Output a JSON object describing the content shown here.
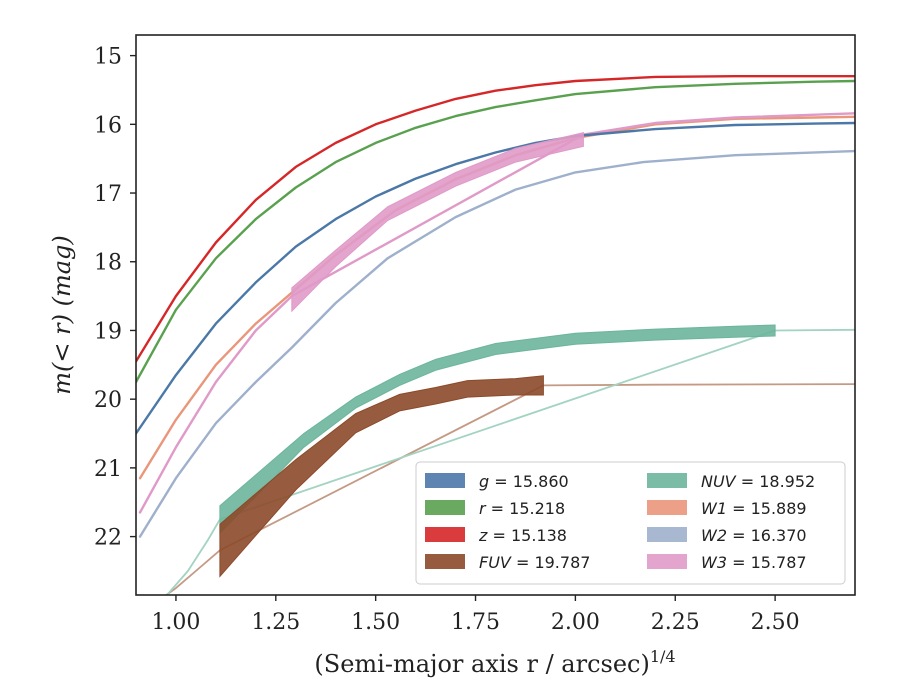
{
  "chart_data": {
    "type": "line",
    "xlabel": "(Semi-major axis r / arcsec)",
    "xlabel_exponent": "1/4",
    "ylabel": "m(< r) (mag)",
    "xlim": [
      0.9,
      2.7
    ],
    "ylim": [
      22.85,
      14.7
    ],
    "y_inverted": true,
    "grid": false,
    "legend_position": "lower-right",
    "xticks": [
      "1.00",
      "1.25",
      "1.50",
      "1.75",
      "2.00",
      "2.25",
      "2.50"
    ],
    "yticks": [
      "15",
      "16",
      "17",
      "18",
      "19",
      "20",
      "21",
      "22"
    ],
    "series": [
      {
        "name": "g",
        "label_value": "15.860",
        "color": "#4c78a8",
        "style": "thin",
        "x": [
          0.9,
          1.0,
          1.1,
          1.2,
          1.3,
          1.4,
          1.5,
          1.6,
          1.7,
          1.8,
          1.9,
          2.0,
          2.2,
          2.4,
          2.6,
          2.7
        ],
        "y": [
          20.5,
          19.65,
          18.9,
          18.3,
          17.78,
          17.38,
          17.05,
          16.79,
          16.58,
          16.41,
          16.27,
          16.17,
          16.07,
          16.01,
          15.99,
          15.98
        ]
      },
      {
        "name": "r",
        "label_value": "15.218",
        "color": "#59a14f",
        "style": "thin",
        "x": [
          0.9,
          1.0,
          1.1,
          1.2,
          1.3,
          1.4,
          1.5,
          1.6,
          1.7,
          1.8,
          1.9,
          2.0,
          2.2,
          2.4,
          2.6,
          2.7
        ],
        "y": [
          19.75,
          18.7,
          17.95,
          17.38,
          16.92,
          16.55,
          16.27,
          16.05,
          15.88,
          15.75,
          15.65,
          15.56,
          15.46,
          15.41,
          15.38,
          15.37
        ]
      },
      {
        "name": "z",
        "label_value": "15.138",
        "color": "#d62728",
        "style": "thin",
        "x": [
          0.9,
          1.0,
          1.1,
          1.2,
          1.3,
          1.4,
          1.5,
          1.6,
          1.7,
          1.8,
          1.9,
          2.0,
          2.2,
          2.4,
          2.6,
          2.7
        ],
        "y": [
          19.45,
          18.5,
          17.72,
          17.1,
          16.62,
          16.27,
          16.0,
          15.8,
          15.63,
          15.51,
          15.43,
          15.37,
          15.31,
          15.3,
          15.3,
          15.3
        ]
      },
      {
        "name": "FUV",
        "label_value": "19.787",
        "color": "#8c4a2a",
        "style": "band",
        "x": [
          1.11,
          1.3,
          1.45,
          1.56,
          1.65,
          1.73,
          1.85,
          1.92
        ],
        "y": [
          22.2,
          21.1,
          20.35,
          20.05,
          19.95,
          19.85,
          19.82,
          19.8
        ],
        "band_halfwidth": [
          0.38,
          0.22,
          0.14,
          0.12,
          0.12,
          0.12,
          0.12,
          0.14
        ]
      },
      {
        "name": "FUV-extension",
        "legend": false,
        "color": "#c49a85",
        "style": "thin",
        "x": [
          0.94,
          1.0,
          1.06,
          1.11,
          1.92,
          2.2,
          2.7
        ],
        "y": [
          23.0,
          22.75,
          22.45,
          22.2,
          19.8,
          19.79,
          19.78
        ]
      },
      {
        "name": "NUV",
        "label_value": "18.952",
        "color": "#6cb59b",
        "style": "band",
        "x": [
          1.11,
          1.32,
          1.45,
          1.56,
          1.65,
          1.8,
          2.0,
          2.2,
          2.4,
          2.5
        ],
        "y": [
          21.75,
          20.6,
          20.05,
          19.72,
          19.5,
          19.27,
          19.12,
          19.06,
          19.02,
          19.0
        ],
        "band_halfwidth": [
          0.2,
          0.1,
          0.08,
          0.08,
          0.08,
          0.08,
          0.08,
          0.08,
          0.08,
          0.08
        ]
      },
      {
        "name": "NUV-extension",
        "legend": false,
        "color": "#a3d3c1",
        "style": "thin",
        "x": [
          0.97,
          1.03,
          1.08,
          1.11,
          2.5,
          2.7
        ],
        "y": [
          22.9,
          22.5,
          22.05,
          21.75,
          19.0,
          18.99
        ]
      },
      {
        "name": "W1",
        "label_value": "15.889",
        "color": "#e9967a",
        "style": "thin",
        "x": [
          0.91,
          1.0,
          1.1,
          1.2,
          1.29,
          1.4,
          1.55,
          1.7,
          1.85,
          2.0,
          2.2,
          2.4,
          2.6,
          2.7
        ],
        "y": [
          21.15,
          20.3,
          19.5,
          18.9,
          18.45,
          17.9,
          17.25,
          16.8,
          16.45,
          16.2,
          16.0,
          15.92,
          15.9,
          15.89
        ]
      },
      {
        "name": "W2",
        "label_value": "16.370",
        "color": "#9fb0cc",
        "style": "thin",
        "x": [
          0.91,
          1.0,
          1.1,
          1.2,
          1.29,
          1.4,
          1.53,
          1.7,
          1.85,
          2.0,
          2.17,
          2.4,
          2.7
        ],
        "y": [
          22.0,
          21.15,
          20.35,
          19.75,
          19.25,
          18.6,
          17.95,
          17.35,
          16.95,
          16.7,
          16.55,
          16.45,
          16.39
        ]
      },
      {
        "name": "W3",
        "label_value": "15.787",
        "color": "#e09ac8",
        "style": "thin",
        "x": [
          0.91,
          1.0,
          1.1,
          1.2,
          1.29,
          2.02,
          2.2,
          2.4,
          2.7
        ],
        "y": [
          21.65,
          20.7,
          19.75,
          19.0,
          18.5,
          16.15,
          15.98,
          15.9,
          15.84
        ]
      },
      {
        "name": "W3-band",
        "legend": false,
        "color": "#e09ac8",
        "style": "band",
        "x": [
          1.29,
          1.4,
          1.53,
          1.7,
          1.85,
          2.02
        ],
        "y": [
          18.55,
          17.95,
          17.3,
          16.8,
          16.45,
          16.22
        ],
        "band_halfwidth": [
          0.17,
          0.12,
          0.1,
          0.1,
          0.1,
          0.1
        ]
      }
    ],
    "legend": [
      {
        "symbol": "g",
        "text": " = 15.860",
        "color": "#4c78a8"
      },
      {
        "symbol": "r",
        "text": " = 15.218",
        "color": "#59a14f"
      },
      {
        "symbol": "z",
        "text": " = 15.138",
        "color": "#d62728"
      },
      {
        "symbol": "FUV",
        "text": " = 19.787",
        "color": "#8c4a2a"
      },
      {
        "symbol": "NUV",
        "text": " = 18.952",
        "color": "#6cb59b"
      },
      {
        "symbol": "W1",
        "text": " = 15.889",
        "color": "#e9967a"
      },
      {
        "symbol": "W2",
        "text": " = 16.370",
        "color": "#9fb0cc"
      },
      {
        "symbol": "W3",
        "text": " = 15.787",
        "color": "#e09ac8"
      }
    ]
  }
}
